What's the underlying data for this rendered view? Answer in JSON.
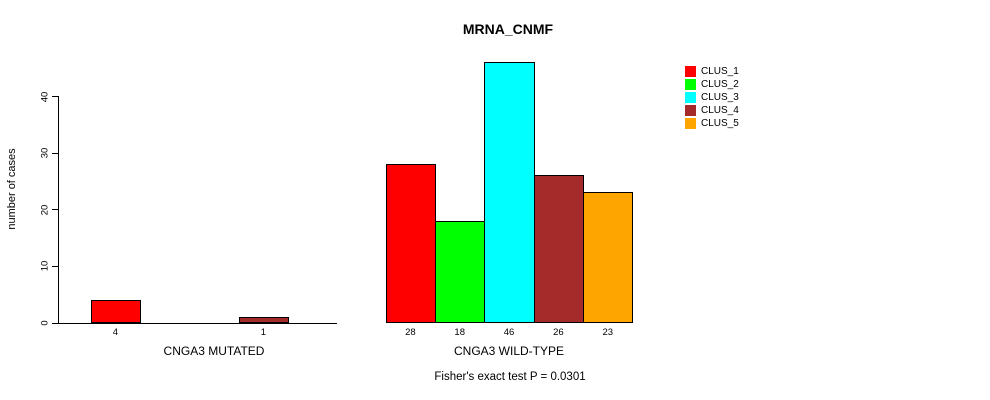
{
  "title": "MRNA_CNMF",
  "footer": "Fisher's exact test P = 0.0301",
  "chart_data": {
    "type": "bar",
    "title": "MRNA_CNMF",
    "xlabel": "",
    "ylabel": "number of cases",
    "yticks": [
      0,
      10,
      20,
      30,
      40
    ],
    "ylim": [
      0,
      46
    ],
    "grid": false,
    "legend_position": "top-right",
    "series": [
      {
        "name": "CLUS_1",
        "color": "#ff0000"
      },
      {
        "name": "CLUS_2",
        "color": "#00ff00"
      },
      {
        "name": "CLUS_3",
        "color": "#00ffff"
      },
      {
        "name": "CLUS_4",
        "color": "#a52a2a"
      },
      {
        "name": "CLUS_5",
        "color": "#ffa500"
      }
    ],
    "groups": [
      {
        "label": "CNGA3 MUTATED",
        "values": [
          4,
          0,
          0,
          1,
          0
        ],
        "bar_labels": [
          "4",
          "",
          "",
          "1",
          ""
        ]
      },
      {
        "label": "CNGA3 WILD-TYPE",
        "values": [
          28,
          18,
          46,
          26,
          23
        ],
        "bar_labels": [
          "28",
          "18",
          "46",
          "26",
          "23"
        ]
      }
    ],
    "annotation": "Fisher's exact test P = 0.0301"
  }
}
